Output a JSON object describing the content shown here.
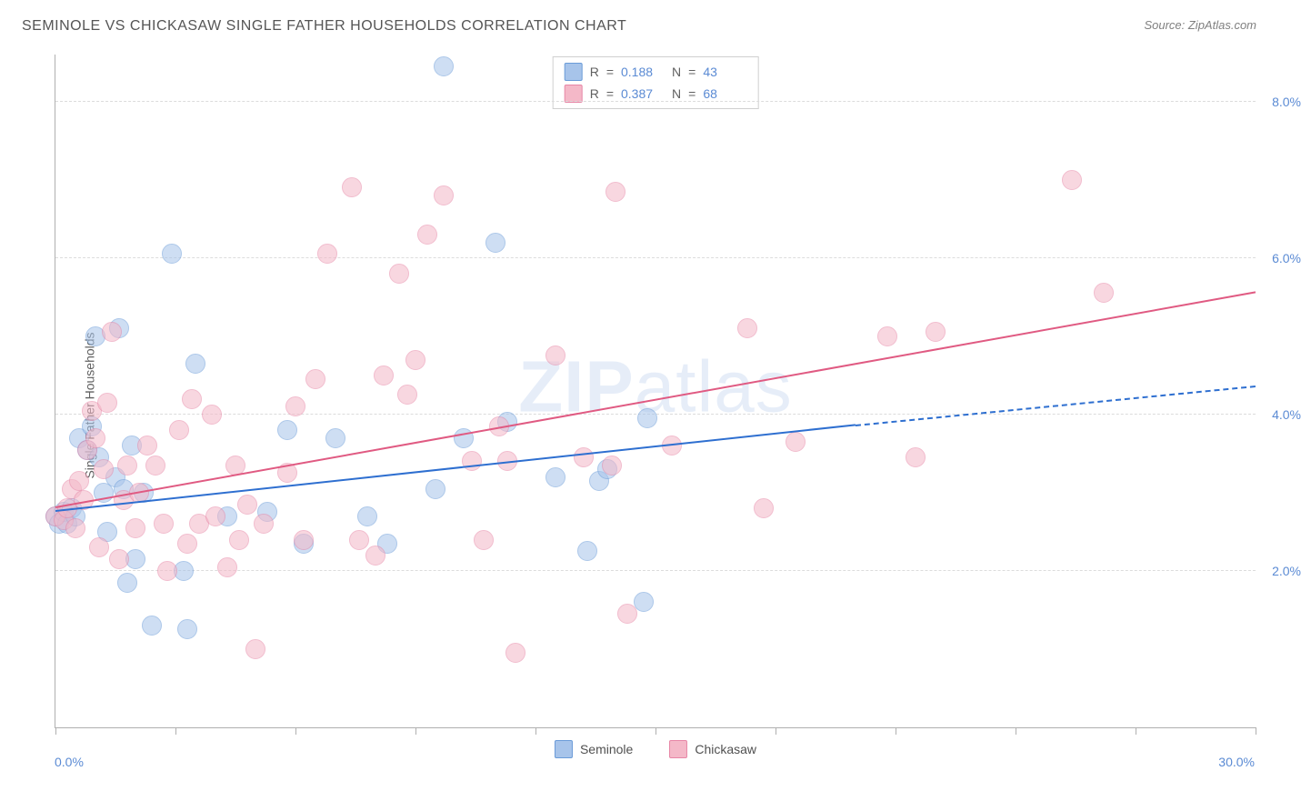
{
  "title": "SEMINOLE VS CHICKASAW SINGLE FATHER HOUSEHOLDS CORRELATION CHART",
  "source": "Source: ZipAtlas.com",
  "ylabel": "Single Father Households",
  "watermark_bold": "ZIP",
  "watermark_light": "atlas",
  "chart": {
    "type": "scatter",
    "background_color": "#ffffff",
    "grid_color": "#dcdcdc",
    "axis_color": "#b0b0b0",
    "label_color": "#5b8bd4",
    "xlim": [
      0,
      30
    ],
    "ylim": [
      0,
      8.6
    ],
    "xlim_labels": {
      "min": "0.0%",
      "max": "30.0%"
    },
    "ytick_values": [
      2.0,
      4.0,
      6.0,
      8.0
    ],
    "ytick_labels": [
      "2.0%",
      "4.0%",
      "6.0%",
      "8.0%"
    ],
    "xtick_values": [
      0,
      3,
      6,
      9,
      12,
      15,
      18,
      21,
      24,
      27,
      30
    ],
    "marker_radius": 10,
    "marker_opacity": 0.55,
    "series": [
      {
        "name": "Seminole",
        "fill_color": "#a7c4ea",
        "stroke_color": "#6a9bd8",
        "trend_color": "#2e6fd0",
        "R": "0.188",
        "N": "43",
        "trend": {
          "x1": 0,
          "y1": 2.75,
          "x2": 20,
          "y2": 3.85,
          "x2_ext": 30,
          "y2_ext": 4.35
        },
        "points": [
          [
            0.0,
            2.7
          ],
          [
            0.1,
            2.6
          ],
          [
            0.2,
            2.75
          ],
          [
            0.3,
            2.6
          ],
          [
            0.4,
            2.8
          ],
          [
            0.5,
            2.7
          ],
          [
            0.6,
            3.7
          ],
          [
            0.8,
            3.55
          ],
          [
            1.0,
            5.0
          ],
          [
            1.1,
            3.45
          ],
          [
            1.2,
            3.0
          ],
          [
            1.3,
            2.5
          ],
          [
            1.5,
            3.2
          ],
          [
            1.6,
            5.1
          ],
          [
            1.7,
            3.05
          ],
          [
            1.8,
            1.85
          ],
          [
            2.0,
            2.15
          ],
          [
            2.2,
            3.0
          ],
          [
            2.4,
            1.3
          ],
          [
            2.9,
            6.05
          ],
          [
            3.2,
            2.0
          ],
          [
            3.3,
            1.25
          ],
          [
            4.3,
            2.7
          ],
          [
            5.3,
            2.75
          ],
          [
            5.8,
            3.8
          ],
          [
            6.2,
            2.35
          ],
          [
            7.0,
            3.7
          ],
          [
            7.8,
            2.7
          ],
          [
            8.3,
            2.35
          ],
          [
            9.5,
            3.05
          ],
          [
            9.7,
            8.45
          ],
          [
            10.2,
            3.7
          ],
          [
            11.0,
            6.2
          ],
          [
            11.3,
            3.9
          ],
          [
            12.5,
            3.2
          ],
          [
            13.3,
            2.25
          ],
          [
            13.6,
            3.15
          ],
          [
            13.8,
            3.3
          ],
          [
            14.7,
            1.6
          ],
          [
            14.8,
            3.95
          ],
          [
            3.5,
            4.65
          ],
          [
            1.9,
            3.6
          ],
          [
            0.9,
            3.85
          ]
        ]
      },
      {
        "name": "Chickasaw",
        "fill_color": "#f4b8c8",
        "stroke_color": "#e786a6",
        "trend_color": "#e05a82",
        "R": "0.387",
        "N": "68",
        "trend": {
          "x1": 0,
          "y1": 2.8,
          "x2": 30,
          "y2": 5.55
        },
        "points": [
          [
            0.0,
            2.7
          ],
          [
            0.2,
            2.65
          ],
          [
            0.3,
            2.8
          ],
          [
            0.4,
            3.05
          ],
          [
            0.5,
            2.55
          ],
          [
            0.6,
            3.15
          ],
          [
            0.8,
            3.55
          ],
          [
            0.9,
            4.05
          ],
          [
            1.0,
            3.7
          ],
          [
            1.1,
            2.3
          ],
          [
            1.2,
            3.3
          ],
          [
            1.3,
            4.15
          ],
          [
            1.4,
            5.05
          ],
          [
            1.7,
            2.9
          ],
          [
            1.8,
            3.35
          ],
          [
            2.0,
            2.55
          ],
          [
            2.1,
            3.0
          ],
          [
            2.3,
            3.6
          ],
          [
            2.7,
            2.6
          ],
          [
            2.8,
            2.0
          ],
          [
            3.1,
            3.8
          ],
          [
            3.3,
            2.35
          ],
          [
            3.4,
            4.2
          ],
          [
            3.6,
            2.6
          ],
          [
            4.0,
            2.7
          ],
          [
            4.3,
            2.05
          ],
          [
            4.5,
            3.35
          ],
          [
            4.6,
            2.4
          ],
          [
            5.0,
            1.0
          ],
          [
            5.8,
            3.25
          ],
          [
            6.2,
            2.4
          ],
          [
            6.5,
            4.45
          ],
          [
            6.8,
            6.05
          ],
          [
            7.4,
            6.9
          ],
          [
            7.6,
            2.4
          ],
          [
            8.0,
            2.2
          ],
          [
            8.2,
            4.5
          ],
          [
            8.6,
            5.8
          ],
          [
            8.8,
            4.25
          ],
          [
            9.3,
            6.3
          ],
          [
            9.7,
            6.8
          ],
          [
            10.4,
            3.4
          ],
          [
            10.7,
            2.4
          ],
          [
            11.1,
            3.85
          ],
          [
            11.3,
            3.4
          ],
          [
            11.5,
            0.95
          ],
          [
            12.5,
            4.75
          ],
          [
            13.2,
            3.45
          ],
          [
            13.9,
            3.35
          ],
          [
            14.0,
            6.85
          ],
          [
            14.3,
            1.45
          ],
          [
            15.4,
            3.6
          ],
          [
            17.3,
            5.1
          ],
          [
            17.7,
            2.8
          ],
          [
            18.5,
            3.65
          ],
          [
            20.8,
            5.0
          ],
          [
            21.5,
            3.45
          ],
          [
            22.0,
            5.05
          ],
          [
            25.4,
            7.0
          ],
          [
            26.2,
            5.55
          ],
          [
            3.9,
            4.0
          ],
          [
            5.2,
            2.6
          ],
          [
            1.6,
            2.15
          ],
          [
            2.5,
            3.35
          ],
          [
            0.7,
            2.9
          ],
          [
            4.8,
            2.85
          ],
          [
            6.0,
            4.1
          ],
          [
            9.0,
            4.7
          ]
        ]
      }
    ]
  },
  "stats_labels": {
    "R": "R",
    "eq": "=",
    "N": "N"
  },
  "legend": {
    "s1": "Seminole",
    "s2": "Chickasaw"
  }
}
